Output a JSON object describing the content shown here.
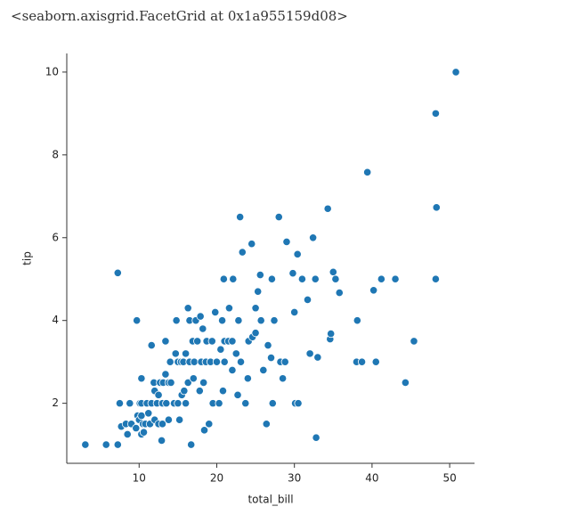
{
  "output": {
    "text": "<seaborn.axisgrid.FacetGrid at 0x1a955159d08>"
  },
  "chart_data": {
    "type": "scatter",
    "xlabel": "total_bill",
    "ylabel": "tip",
    "color": "#1f77b4",
    "xlim": [
      0.68,
      53.2
    ],
    "ylim": [
      0.55,
      10.45
    ],
    "xticks": [
      10,
      20,
      30,
      40,
      50
    ],
    "yticks": [
      2,
      4,
      6,
      8,
      10
    ],
    "x": [
      3.07,
      5.75,
      7.25,
      7.25,
      7.5,
      7.7,
      8.3,
      8.5,
      8.8,
      9,
      9.6,
      9.7,
      9.8,
      10,
      10.1,
      10.3,
      10.3,
      10.3,
      10.5,
      10.3,
      10.6,
      10.8,
      11,
      11.2,
      11.4,
      11.6,
      11.6,
      11.9,
      12,
      12,
      12.3,
      12.5,
      12.5,
      12.7,
      12.9,
      13,
      13,
      13.1,
      13.4,
      13.4,
      13.5,
      13.8,
      13.8,
      14,
      14.1,
      14.5,
      14.7,
      14.8,
      15,
      15,
      15.2,
      15.4,
      15.5,
      15.7,
      15.8,
      16,
      16,
      16.3,
      16.3,
      16.5,
      16.5,
      16.7,
      16.9,
      17,
      17.1,
      17.3,
      17.5,
      17.8,
      17.9,
      18,
      18.2,
      18.3,
      18.4,
      18.6,
      18.7,
      19,
      19.2,
      19.4,
      19.5,
      19.8,
      20,
      20.3,
      20.5,
      20.7,
      20.8,
      20.9,
      21,
      21,
      21.5,
      21.6,
      22,
      22,
      22.1,
      22.5,
      22.7,
      22.8,
      23,
      23.1,
      23.3,
      23.7,
      24,
      24.1,
      24.5,
      24.6,
      25,
      25,
      25.3,
      25.6,
      25.7,
      26,
      26.4,
      26.6,
      27,
      27.1,
      27.2,
      27.4,
      28,
      28.2,
      28.5,
      28.8,
      29,
      29.8,
      30,
      30.1,
      30.4,
      30.5,
      31,
      31.7,
      32,
      32.4,
      32.7,
      32.8,
      33,
      34.3,
      34.6,
      34.7,
      35,
      35.3,
      35.8,
      38,
      38.1,
      38.7,
      39.4,
      40.2,
      40.5,
      41.2,
      43,
      44.3,
      45.4,
      48.2,
      48.3,
      48.2,
      50.8
    ],
    "values": [
      1,
      1,
      1,
      5.15,
      2,
      1.44,
      1.5,
      1.25,
      2,
      1.5,
      1.4,
      4,
      1.7,
      1.6,
      2,
      1.7,
      2,
      1.25,
      1.5,
      2.6,
      1.3,
      1.5,
      2,
      1.76,
      1.5,
      3.4,
      2,
      2.5,
      1.6,
      2.3,
      2,
      1.5,
      2.2,
      2.5,
      1.1,
      2,
      1.5,
      2.5,
      2.7,
      3.5,
      2,
      2.5,
      1.6,
      3,
      2.5,
      2,
      3.2,
      4,
      2,
      3,
      1.6,
      3,
      2.2,
      3,
      2.3,
      2,
      3.2,
      2.5,
      4.3,
      3,
      4,
      1,
      3.5,
      2.6,
      3,
      4,
      3.5,
      2.3,
      4.1,
      3,
      3.8,
      2.5,
      1.35,
      3,
      3.5,
      1.5,
      3,
      3.5,
      2,
      4.2,
      3,
      2,
      3.3,
      4,
      2.3,
      5,
      3,
      3.5,
      3.5,
      4.3,
      3.5,
      2.8,
      5,
      3.2,
      2.2,
      4,
      6.5,
      3,
      5.65,
      2,
      2.6,
      3.5,
      5.85,
      3.6,
      3.7,
      4.3,
      4.7,
      5.1,
      4,
      2.8,
      1.5,
      3.4,
      3.1,
      5,
      2,
      4,
      6.5,
      3,
      2.6,
      3,
      5.9,
      5.14,
      4.2,
      2,
      5.6,
      2,
      5,
      4.5,
      3.2,
      6,
      5,
      1.17,
      3.11,
      6.7,
      3.55,
      3.68,
      5.17,
      5,
      4.67,
      3,
      4,
      3,
      7.58,
      4.73,
      3,
      5,
      5,
      2.5,
      3.5,
      5,
      6.73,
      9,
      10
    ]
  }
}
